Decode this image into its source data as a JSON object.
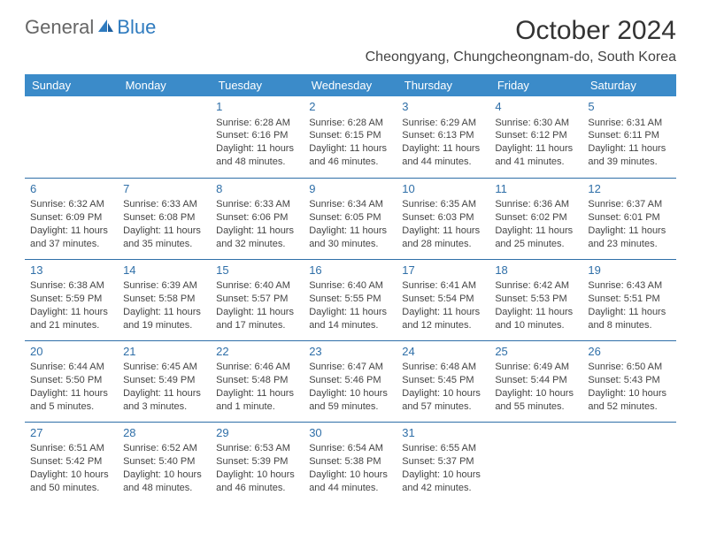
{
  "logo": {
    "part1": "General",
    "part2": "Blue"
  },
  "title": "October 2024",
  "location": "Cheongyang, Chungcheongnam-do, South Korea",
  "colors": {
    "header_bg": "#3b8bc9",
    "header_text": "#ffffff",
    "daynum": "#2f6fa8",
    "row_border": "#2f6fa8",
    "body_text": "#444444",
    "logo_blue": "#2f7bbf"
  },
  "day_headers": [
    "Sunday",
    "Monday",
    "Tuesday",
    "Wednesday",
    "Thursday",
    "Friday",
    "Saturday"
  ],
  "weeks": [
    [
      null,
      null,
      {
        "n": "1",
        "sr": "Sunrise: 6:28 AM",
        "ss": "Sunset: 6:16 PM",
        "d1": "Daylight: 11 hours",
        "d2": "and 48 minutes."
      },
      {
        "n": "2",
        "sr": "Sunrise: 6:28 AM",
        "ss": "Sunset: 6:15 PM",
        "d1": "Daylight: 11 hours",
        "d2": "and 46 minutes."
      },
      {
        "n": "3",
        "sr": "Sunrise: 6:29 AM",
        "ss": "Sunset: 6:13 PM",
        "d1": "Daylight: 11 hours",
        "d2": "and 44 minutes."
      },
      {
        "n": "4",
        "sr": "Sunrise: 6:30 AM",
        "ss": "Sunset: 6:12 PM",
        "d1": "Daylight: 11 hours",
        "d2": "and 41 minutes."
      },
      {
        "n": "5",
        "sr": "Sunrise: 6:31 AM",
        "ss": "Sunset: 6:11 PM",
        "d1": "Daylight: 11 hours",
        "d2": "and 39 minutes."
      }
    ],
    [
      {
        "n": "6",
        "sr": "Sunrise: 6:32 AM",
        "ss": "Sunset: 6:09 PM",
        "d1": "Daylight: 11 hours",
        "d2": "and 37 minutes."
      },
      {
        "n": "7",
        "sr": "Sunrise: 6:33 AM",
        "ss": "Sunset: 6:08 PM",
        "d1": "Daylight: 11 hours",
        "d2": "and 35 minutes."
      },
      {
        "n": "8",
        "sr": "Sunrise: 6:33 AM",
        "ss": "Sunset: 6:06 PM",
        "d1": "Daylight: 11 hours",
        "d2": "and 32 minutes."
      },
      {
        "n": "9",
        "sr": "Sunrise: 6:34 AM",
        "ss": "Sunset: 6:05 PM",
        "d1": "Daylight: 11 hours",
        "d2": "and 30 minutes."
      },
      {
        "n": "10",
        "sr": "Sunrise: 6:35 AM",
        "ss": "Sunset: 6:03 PM",
        "d1": "Daylight: 11 hours",
        "d2": "and 28 minutes."
      },
      {
        "n": "11",
        "sr": "Sunrise: 6:36 AM",
        "ss": "Sunset: 6:02 PM",
        "d1": "Daylight: 11 hours",
        "d2": "and 25 minutes."
      },
      {
        "n": "12",
        "sr": "Sunrise: 6:37 AM",
        "ss": "Sunset: 6:01 PM",
        "d1": "Daylight: 11 hours",
        "d2": "and 23 minutes."
      }
    ],
    [
      {
        "n": "13",
        "sr": "Sunrise: 6:38 AM",
        "ss": "Sunset: 5:59 PM",
        "d1": "Daylight: 11 hours",
        "d2": "and 21 minutes."
      },
      {
        "n": "14",
        "sr": "Sunrise: 6:39 AM",
        "ss": "Sunset: 5:58 PM",
        "d1": "Daylight: 11 hours",
        "d2": "and 19 minutes."
      },
      {
        "n": "15",
        "sr": "Sunrise: 6:40 AM",
        "ss": "Sunset: 5:57 PM",
        "d1": "Daylight: 11 hours",
        "d2": "and 17 minutes."
      },
      {
        "n": "16",
        "sr": "Sunrise: 6:40 AM",
        "ss": "Sunset: 5:55 PM",
        "d1": "Daylight: 11 hours",
        "d2": "and 14 minutes."
      },
      {
        "n": "17",
        "sr": "Sunrise: 6:41 AM",
        "ss": "Sunset: 5:54 PM",
        "d1": "Daylight: 11 hours",
        "d2": "and 12 minutes."
      },
      {
        "n": "18",
        "sr": "Sunrise: 6:42 AM",
        "ss": "Sunset: 5:53 PM",
        "d1": "Daylight: 11 hours",
        "d2": "and 10 minutes."
      },
      {
        "n": "19",
        "sr": "Sunrise: 6:43 AM",
        "ss": "Sunset: 5:51 PM",
        "d1": "Daylight: 11 hours",
        "d2": "and 8 minutes."
      }
    ],
    [
      {
        "n": "20",
        "sr": "Sunrise: 6:44 AM",
        "ss": "Sunset: 5:50 PM",
        "d1": "Daylight: 11 hours",
        "d2": "and 5 minutes."
      },
      {
        "n": "21",
        "sr": "Sunrise: 6:45 AM",
        "ss": "Sunset: 5:49 PM",
        "d1": "Daylight: 11 hours",
        "d2": "and 3 minutes."
      },
      {
        "n": "22",
        "sr": "Sunrise: 6:46 AM",
        "ss": "Sunset: 5:48 PM",
        "d1": "Daylight: 11 hours",
        "d2": "and 1 minute."
      },
      {
        "n": "23",
        "sr": "Sunrise: 6:47 AM",
        "ss": "Sunset: 5:46 PM",
        "d1": "Daylight: 10 hours",
        "d2": "and 59 minutes."
      },
      {
        "n": "24",
        "sr": "Sunrise: 6:48 AM",
        "ss": "Sunset: 5:45 PM",
        "d1": "Daylight: 10 hours",
        "d2": "and 57 minutes."
      },
      {
        "n": "25",
        "sr": "Sunrise: 6:49 AM",
        "ss": "Sunset: 5:44 PM",
        "d1": "Daylight: 10 hours",
        "d2": "and 55 minutes."
      },
      {
        "n": "26",
        "sr": "Sunrise: 6:50 AM",
        "ss": "Sunset: 5:43 PM",
        "d1": "Daylight: 10 hours",
        "d2": "and 52 minutes."
      }
    ],
    [
      {
        "n": "27",
        "sr": "Sunrise: 6:51 AM",
        "ss": "Sunset: 5:42 PM",
        "d1": "Daylight: 10 hours",
        "d2": "and 50 minutes."
      },
      {
        "n": "28",
        "sr": "Sunrise: 6:52 AM",
        "ss": "Sunset: 5:40 PM",
        "d1": "Daylight: 10 hours",
        "d2": "and 48 minutes."
      },
      {
        "n": "29",
        "sr": "Sunrise: 6:53 AM",
        "ss": "Sunset: 5:39 PM",
        "d1": "Daylight: 10 hours",
        "d2": "and 46 minutes."
      },
      {
        "n": "30",
        "sr": "Sunrise: 6:54 AM",
        "ss": "Sunset: 5:38 PM",
        "d1": "Daylight: 10 hours",
        "d2": "and 44 minutes."
      },
      {
        "n": "31",
        "sr": "Sunrise: 6:55 AM",
        "ss": "Sunset: 5:37 PM",
        "d1": "Daylight: 10 hours",
        "d2": "and 42 minutes."
      },
      null,
      null
    ]
  ]
}
